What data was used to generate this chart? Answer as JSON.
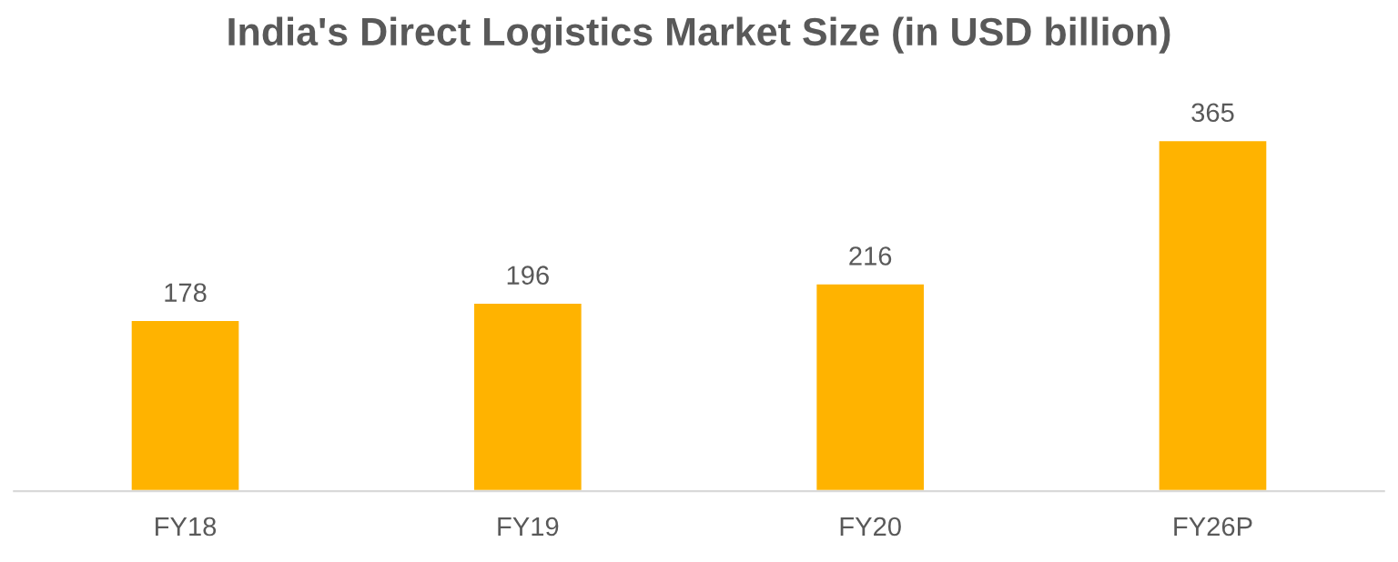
{
  "chart_data": {
    "type": "bar",
    "title": "India's Direct Logistics Market Size (in USD billion)",
    "categories": [
      "FY18",
      "FY19",
      "FY20",
      "FY26P"
    ],
    "values": [
      178,
      196,
      216,
      365
    ],
    "color": "#ffb300",
    "data_labels": true,
    "grid": false,
    "legend": false
  }
}
